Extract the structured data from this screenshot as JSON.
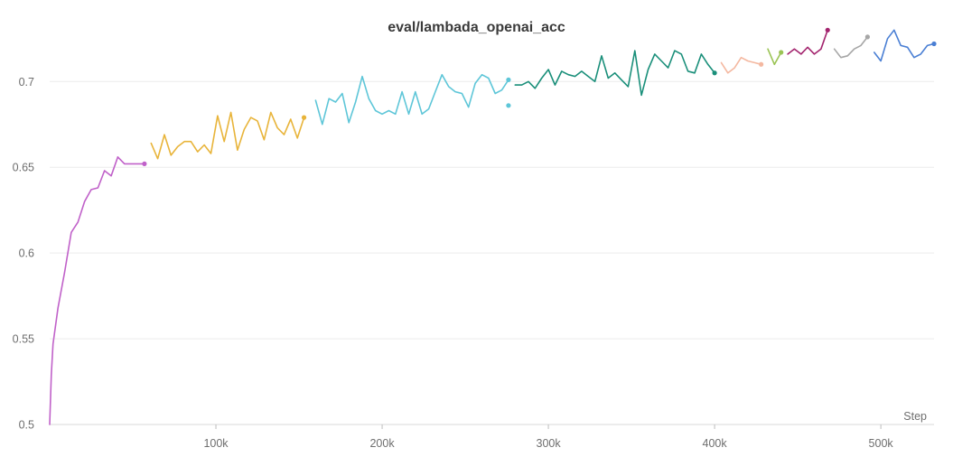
{
  "chart_data": {
    "type": "line",
    "title": "eval/lambada_openai_acc",
    "xlabel": "Step",
    "ylabel": "",
    "xlim": [
      0,
      532000
    ],
    "ylim": [
      0.5,
      0.737
    ],
    "x_ticks": [
      100000,
      200000,
      300000,
      400000,
      500000
    ],
    "x_tick_labels": [
      "100k",
      "200k",
      "300k",
      "400k",
      "500k"
    ],
    "y_ticks": [
      0.5,
      0.55,
      0.6,
      0.65,
      0.7
    ],
    "y_tick_labels": [
      "0.5",
      "0.55",
      "0.6",
      "0.65",
      "0.7"
    ],
    "grid": true,
    "legend": "none",
    "series": [
      {
        "color": "#c061c9",
        "x": [
          0,
          1000,
          2000,
          5000,
          9000,
          13000,
          17000,
          21000,
          25000,
          29000,
          33000,
          37000,
          41000,
          45000,
          49000,
          53000,
          57000
        ],
        "y": [
          0.5,
          0.529,
          0.547,
          0.568,
          0.589,
          0.612,
          0.618,
          0.63,
          0.637,
          0.638,
          0.648,
          0.645,
          0.656,
          0.652,
          0.652,
          0.652,
          0.652
        ]
      },
      {
        "color": "#e8b43a",
        "x": [
          61000,
          65000,
          69000,
          73000,
          77000,
          81000,
          85000,
          89000,
          93000,
          97000,
          101000,
          105000,
          109000,
          113000,
          117000,
          121000,
          125000,
          129000,
          133000,
          137000,
          141000,
          145000,
          149000,
          153000
        ],
        "y": [
          0.664,
          0.655,
          0.669,
          0.657,
          0.662,
          0.665,
          0.665,
          0.659,
          0.663,
          0.658,
          0.68,
          0.665,
          0.682,
          0.66,
          0.672,
          0.679,
          0.677,
          0.666,
          0.682,
          0.673,
          0.669,
          0.678,
          0.667,
          0.679
        ]
      },
      {
        "color": "#5ec6d8",
        "x": [
          160000,
          164000,
          168000,
          172000,
          176000,
          180000,
          184000,
          188000,
          192000,
          196000,
          200000,
          204000,
          208000,
          212000,
          216000,
          220000,
          224000,
          228000,
          232000,
          236000,
          240000,
          244000,
          248000,
          252000,
          256000,
          260000,
          264000,
          268000,
          272000,
          276000
        ],
        "y": [
          0.689,
          0.675,
          0.69,
          0.688,
          0.693,
          0.676,
          0.688,
          0.703,
          0.69,
          0.683,
          0.681,
          0.683,
          0.681,
          0.694,
          0.681,
          0.694,
          0.681,
          0.684,
          0.694,
          0.704,
          0.697,
          0.694,
          0.693,
          0.685,
          0.699,
          0.704,
          0.702,
          0.693,
          0.695,
          0.701
        ]
      },
      {
        "color": "#5ec6d8",
        "x": [
          276000
        ],
        "y": [
          0.686
        ]
      },
      {
        "color": "#1a8f7a",
        "x": [
          280000,
          284000,
          288000,
          292000,
          296000,
          300000,
          304000,
          308000,
          312000,
          316000,
          320000,
          324000,
          328000,
          332000,
          336000,
          340000,
          344000,
          348000,
          352000,
          356000,
          360000,
          364000,
          368000,
          372000,
          376000,
          380000,
          384000,
          388000,
          392000,
          396000,
          400000
        ],
        "y": [
          0.698,
          0.698,
          0.7,
          0.696,
          0.702,
          0.707,
          0.698,
          0.706,
          0.704,
          0.703,
          0.706,
          0.703,
          0.7,
          0.715,
          0.702,
          0.705,
          0.701,
          0.697,
          0.718,
          0.692,
          0.707,
          0.716,
          0.712,
          0.708,
          0.718,
          0.716,
          0.706,
          0.705,
          0.716,
          0.71,
          0.705
        ]
      },
      {
        "color": "#f4b8a0",
        "x": [
          404000,
          408000,
          412000,
          416000,
          420000,
          424000,
          428000
        ],
        "y": [
          0.711,
          0.705,
          0.708,
          0.714,
          0.712,
          0.711,
          0.71
        ]
      },
      {
        "color": "#9bc455",
        "x": [
          432000,
          436000,
          440000
        ],
        "y": [
          0.719,
          0.71,
          0.717
        ]
      },
      {
        "color": "#a3246e",
        "x": [
          444000,
          448000,
          452000,
          456000,
          460000,
          464000,
          468000
        ],
        "y": [
          0.716,
          0.719,
          0.716,
          0.72,
          0.716,
          0.719,
          0.73
        ]
      },
      {
        "color": "#a6a6a6",
        "x": [
          472000,
          476000,
          480000,
          484000,
          488000,
          492000
        ],
        "y": [
          0.719,
          0.714,
          0.715,
          0.719,
          0.721,
          0.726
        ]
      },
      {
        "color": "#4a7fd4",
        "x": [
          496000,
          500000,
          504000,
          508000,
          512000,
          516000,
          520000,
          524000,
          528000,
          532000
        ],
        "y": [
          0.717,
          0.712,
          0.725,
          0.73,
          0.721,
          0.72,
          0.714,
          0.716,
          0.721,
          0.722
        ]
      }
    ]
  }
}
